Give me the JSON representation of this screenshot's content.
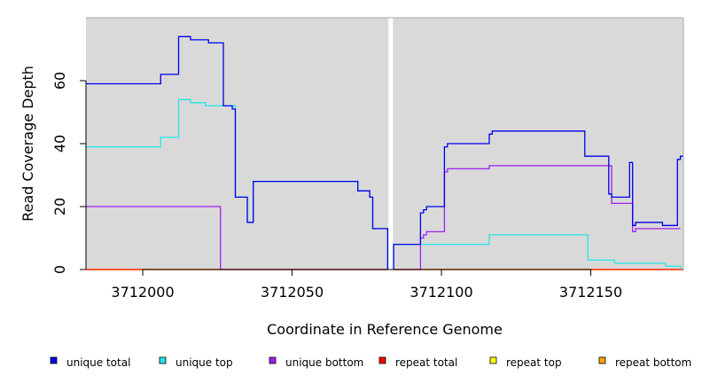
{
  "chart_data": {
    "type": "line",
    "step": true,
    "xlabel": "Coordinate in Reference Genome",
    "ylabel": "Read Coverage Depth",
    "xlim": [
      3711981,
      3712181
    ],
    "ylim": [
      0,
      80
    ],
    "xticks": [
      3712000,
      3712050,
      3712100,
      3712150
    ],
    "yticks": [
      0,
      20,
      40,
      60
    ],
    "grid": false,
    "panel_background": "#d9d9d9",
    "gap_marker": {
      "x": 3712083,
      "color": "#ffffff"
    },
    "legend_position": "bottom",
    "series": [
      {
        "name": "unique total",
        "color": "#0000ee",
        "segments": [
          [
            [
              3711981,
              59
            ],
            [
              3712006,
              59
            ],
            [
              3712006,
              62
            ],
            [
              3712012,
              62
            ],
            [
              3712012,
              74
            ],
            [
              3712016,
              74
            ],
            [
              3712016,
              73
            ],
            [
              3712022,
              73
            ],
            [
              3712022,
              72
            ],
            [
              3712027,
              72
            ],
            [
              3712027,
              52
            ],
            [
              3712030,
              52
            ],
            [
              3712030,
              51
            ],
            [
              3712031,
              51
            ],
            [
              3712031,
              23
            ],
            [
              3712035,
              23
            ],
            [
              3712035,
              15
            ],
            [
              3712037,
              15
            ],
            [
              3712037,
              28
            ],
            [
              3712072,
              28
            ],
            [
              3712072,
              25
            ],
            [
              3712076,
              25
            ],
            [
              3712076,
              23
            ],
            [
              3712077,
              23
            ],
            [
              3712077,
              13
            ],
            [
              3712082,
              13
            ],
            [
              3712082,
              0
            ]
          ],
          [
            [
              3712084,
              0
            ],
            [
              3712084,
              8
            ],
            [
              3712093,
              8
            ],
            [
              3712093,
              18
            ],
            [
              3712094,
              18
            ],
            [
              3712094,
              19
            ],
            [
              3712095,
              19
            ],
            [
              3712095,
              20
            ],
            [
              3712101,
              20
            ],
            [
              3712101,
              39
            ],
            [
              3712102,
              39
            ],
            [
              3712102,
              40
            ],
            [
              3712116,
              40
            ],
            [
              3712116,
              43
            ],
            [
              3712117,
              43
            ],
            [
              3712117,
              44
            ],
            [
              3712148,
              44
            ],
            [
              3712148,
              36
            ],
            [
              3712156,
              36
            ],
            [
              3712156,
              24
            ],
            [
              3712157,
              24
            ],
            [
              3712157,
              23
            ],
            [
              3712163,
              23
            ],
            [
              3712163,
              34
            ],
            [
              3712164,
              34
            ],
            [
              3712164,
              14
            ],
            [
              3712165,
              14
            ],
            [
              3712165,
              15
            ],
            [
              3712174,
              15
            ],
            [
              3712174,
              14
            ],
            [
              3712179,
              14
            ],
            [
              3712179,
              35
            ],
            [
              3712180,
              35
            ],
            [
              3712180,
              36
            ],
            [
              3712181,
              36
            ]
          ]
        ]
      },
      {
        "name": "unique top",
        "color": "#22e6e6",
        "segments": [
          [
            [
              3711981,
              39
            ],
            [
              3712006,
              39
            ],
            [
              3712006,
              42
            ],
            [
              3712012,
              42
            ],
            [
              3712012,
              54
            ],
            [
              3712016,
              54
            ],
            [
              3712016,
              53
            ],
            [
              3712021,
              53
            ],
            [
              3712021,
              52
            ],
            [
              3712027,
              52
            ],
            [
              3712027,
              52
            ],
            [
              3712031,
              52
            ],
            [
              3712031,
              23
            ],
            [
              3712035,
              23
            ],
            [
              3712035,
              15
            ],
            [
              3712037,
              15
            ],
            [
              3712037,
              28
            ],
            [
              3712072,
              28
            ],
            [
              3712072,
              25
            ],
            [
              3712076,
              25
            ],
            [
              3712076,
              23
            ],
            [
              3712077,
              23
            ],
            [
              3712077,
              13
            ],
            [
              3712082,
              13
            ],
            [
              3712082,
              0
            ]
          ],
          [
            [
              3712084,
              0
            ],
            [
              3712084,
              8
            ],
            [
              3712116,
              8
            ],
            [
              3712116,
              11
            ],
            [
              3712149,
              11
            ],
            [
              3712149,
              3
            ],
            [
              3712158,
              3
            ],
            [
              3712158,
              2
            ],
            [
              3712175,
              2
            ],
            [
              3712175,
              1
            ],
            [
              3712180,
              1
            ],
            [
              3712180,
              0
            ]
          ]
        ]
      },
      {
        "name": "unique bottom",
        "color": "#a020f0",
        "segments": [
          [
            [
              3711981,
              20
            ],
            [
              3712026,
              20
            ],
            [
              3712026,
              0
            ],
            [
              3712082,
              0
            ]
          ],
          [
            [
              3712084,
              0
            ],
            [
              3712093,
              0
            ],
            [
              3712093,
              10
            ],
            [
              3712094,
              10
            ],
            [
              3712094,
              11
            ],
            [
              3712095,
              11
            ],
            [
              3712095,
              12
            ],
            [
              3712101,
              12
            ],
            [
              3712101,
              31
            ],
            [
              3712102,
              31
            ],
            [
              3712102,
              32
            ],
            [
              3712116,
              32
            ],
            [
              3712116,
              33
            ],
            [
              3712157,
              33
            ],
            [
              3712157,
              21
            ],
            [
              3712164,
              21
            ],
            [
              3712164,
              12
            ],
            [
              3712165,
              12
            ],
            [
              3712165,
              13
            ],
            [
              3712180,
              13
            ]
          ]
        ]
      },
      {
        "name": "repeat total",
        "color": "#ff0000",
        "segments": [
          [
            [
              3711981,
              0
            ],
            [
              3712082,
              0
            ]
          ],
          [
            [
              3712084,
              0
            ],
            [
              3712181,
              0
            ]
          ]
        ]
      },
      {
        "name": "repeat top",
        "color": "#ffff00",
        "segments": [
          [
            [
              3711981,
              0
            ],
            [
              3712082,
              0
            ]
          ],
          [
            [
              3712084,
              0
            ],
            [
              3712181,
              0
            ]
          ]
        ]
      },
      {
        "name": "repeat bottom",
        "color": "#ffa500",
        "segments": [
          [
            [
              3711981,
              0
            ],
            [
              3712082,
              0
            ]
          ],
          [
            [
              3712084,
              0
            ],
            [
              3712181,
              0
            ]
          ]
        ]
      }
    ]
  }
}
